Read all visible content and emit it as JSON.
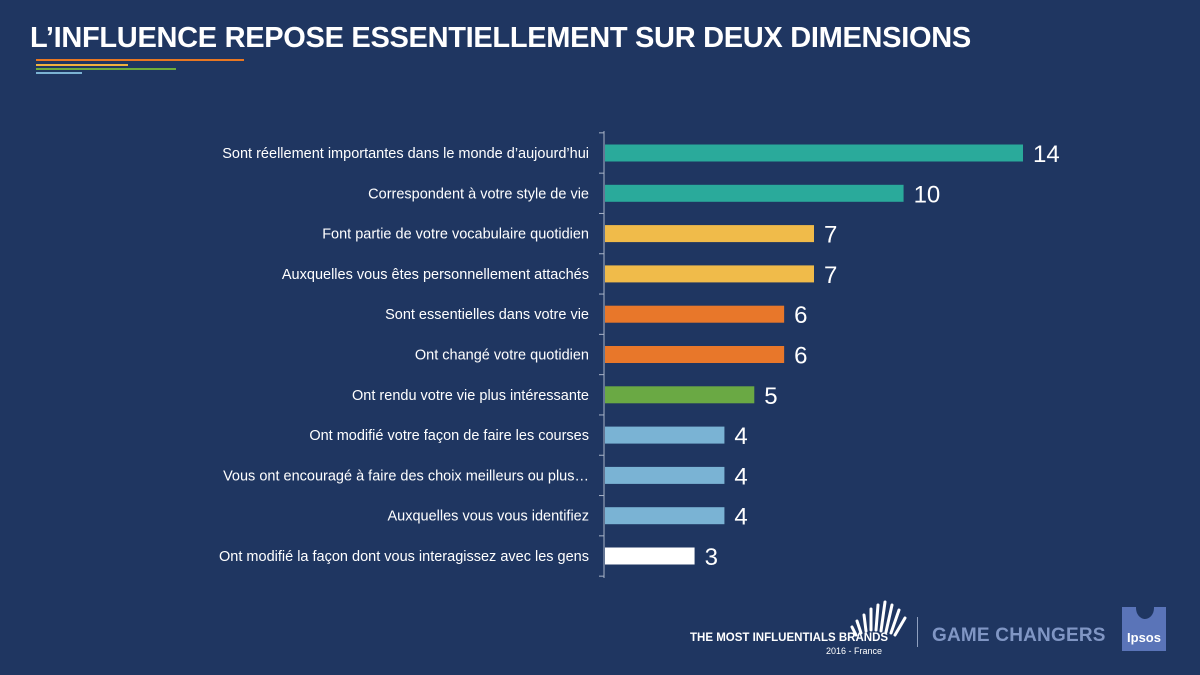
{
  "page": {
    "title": "L’INFLUENCE REPOSE ESSENTIELLEMENT SUR DEUX DIMENSIONS"
  },
  "chart_data": {
    "type": "bar",
    "orientation": "horizontal",
    "title": "",
    "xlabel": "",
    "ylabel": "",
    "xlim": [
      0,
      14
    ],
    "grid": false,
    "categories": [
      "Sont réellement importantes dans le monde d’aujourd’hui",
      "Correspondent à votre style de vie",
      "Font partie de votre vocabulaire quotidien",
      "Auxquelles vous êtes personnellement attachés",
      "Sont essentielles dans votre vie",
      "Ont changé votre quotidien",
      "Ont rendu votre vie plus intéressante",
      "Ont modifié votre façon de faire les courses",
      "Vous ont encouragé à faire des choix meilleurs ou plus…",
      "Auxquelles vous vous identifiez",
      "Ont modifié la façon dont vous interagissez avec les gens"
    ],
    "values": [
      14,
      10,
      7,
      7,
      6,
      6,
      5,
      4,
      4,
      4,
      3
    ],
    "colors": [
      "#2aaa9b",
      "#2aaa9b",
      "#f0bb4a",
      "#f0bb4a",
      "#e8772a",
      "#e8772a",
      "#6aa944",
      "#7ab3d4",
      "#7ab3d4",
      "#7ab3d4",
      "#ffffff"
    ]
  },
  "footer": {
    "brand_line1": "THE MOST INFLUENTIALS BRANDS",
    "brand_line2": "2016 - France",
    "tagline": "GAME CHANGERS",
    "logo_text": "Ipsos"
  }
}
